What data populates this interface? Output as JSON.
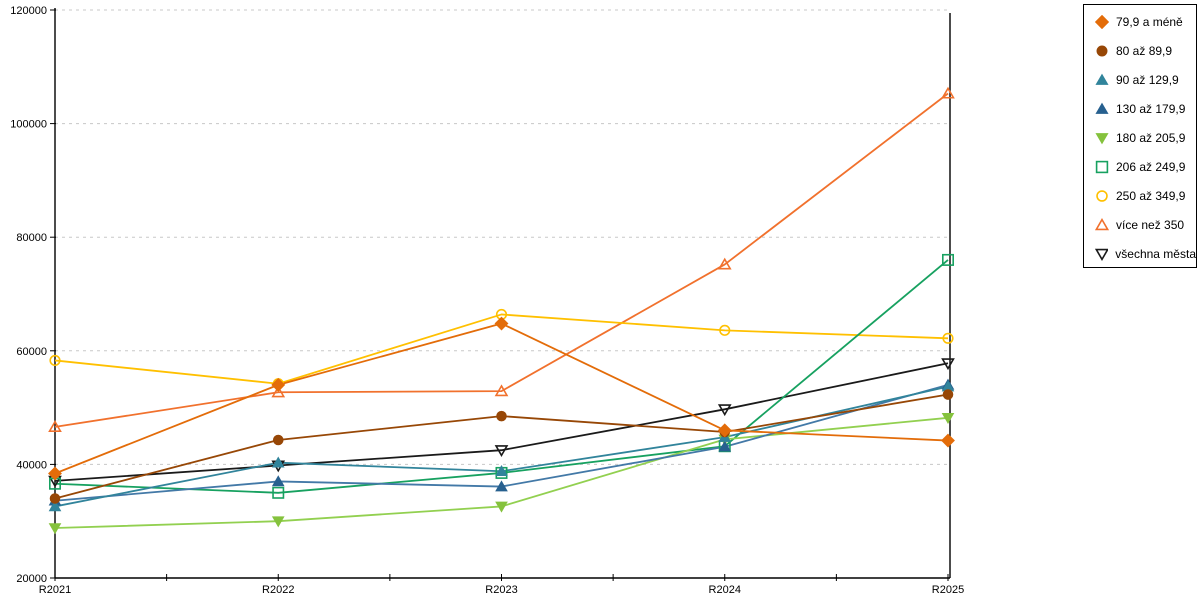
{
  "chart_data": {
    "type": "line",
    "title": "",
    "xlabel": "",
    "ylabel": "",
    "x_categories": [
      "R2021",
      "R2022",
      "R2023",
      "R2024",
      "R2025"
    ],
    "ylim": [
      20000,
      120000
    ],
    "y_ticks": [
      20000,
      40000,
      60000,
      80000,
      100000,
      120000
    ],
    "grid": "horizontal-dotted",
    "legend_position": "top-right",
    "series": [
      {
        "name": "79,9 a méně",
        "color": "#E36C09",
        "marker_color": "#E36C09",
        "marker": "diamond",
        "fill": "solid",
        "values": [
          38400,
          54000,
          64800,
          46000,
          44200
        ]
      },
      {
        "name": "80 až 89,9",
        "color": "#974706",
        "marker_color": "#974706",
        "marker": "circle",
        "fill": "solid",
        "values": [
          34000,
          44300,
          48500,
          45700,
          52300
        ]
      },
      {
        "name": "90 až 129,9",
        "color": "#31849B",
        "marker_color": "#31849B",
        "marker": "triangle-up",
        "fill": "solid",
        "values": [
          32600,
          40300,
          38800,
          44800,
          53700
        ]
      },
      {
        "name": "130 až 179,9",
        "color": "#4379A7",
        "marker_color": "#27608F",
        "marker": "triangle-up",
        "fill": "solid",
        "values": [
          33600,
          37000,
          36100,
          43100,
          54000
        ]
      },
      {
        "name": "180 až 205,9",
        "color": "#92D050",
        "marker_color": "#85C23D",
        "marker": "triangle-down",
        "fill": "solid",
        "values": [
          28800,
          30000,
          32600,
          44400,
          48200
        ]
      },
      {
        "name": "206 až 249,9",
        "color": "#17A160",
        "marker_color": "#17A160",
        "marker": "square",
        "fill": "hollow",
        "values": [
          36600,
          35000,
          38500,
          43200,
          76000
        ]
      },
      {
        "name": "250 až 349,9",
        "color": "#FFC000",
        "marker_color": "#FFC000",
        "marker": "circle",
        "fill": "hollow",
        "values": [
          58300,
          54200,
          66400,
          63600,
          62200
        ]
      },
      {
        "name": "více než 350",
        "color": "#F1712D",
        "marker_color": "#F1712D",
        "marker": "triangle-up",
        "fill": "hollow",
        "values": [
          46600,
          52700,
          52900,
          75200,
          105300
        ]
      },
      {
        "name": "všechna města",
        "color": "#1A1A1A",
        "marker_color": "#1A1A1A",
        "marker": "triangle-down",
        "fill": "hollow",
        "values": [
          37100,
          39800,
          42500,
          49700,
          57800
        ]
      }
    ],
    "colors": {
      "axis": "#000000",
      "gridline": "#C8C8C8",
      "background": "#FFFFFF"
    }
  }
}
